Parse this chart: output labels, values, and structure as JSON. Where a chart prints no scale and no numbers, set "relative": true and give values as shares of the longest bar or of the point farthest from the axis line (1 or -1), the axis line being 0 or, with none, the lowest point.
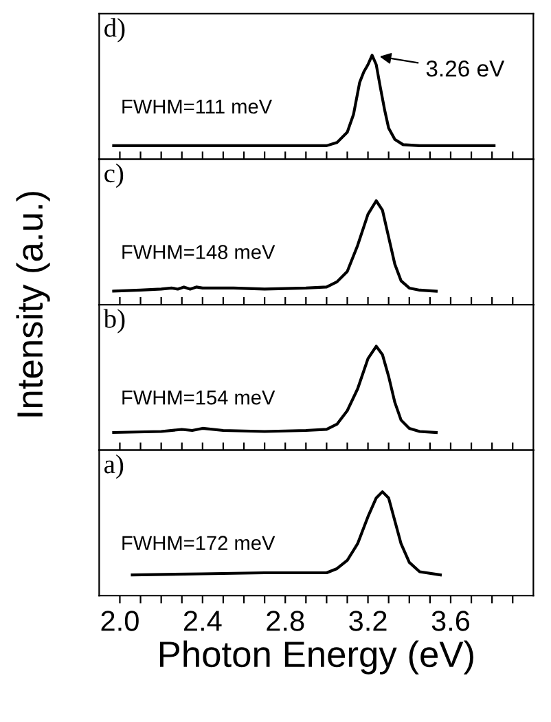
{
  "chart_data": [
    {
      "type": "line",
      "relative": true,
      "tick_labels": false,
      "ylabel": "Intensity (a.u.)",
      "xlim": [
        1.9,
        4.0
      ],
      "xticks": [
        {
          "value": 2.0,
          "label": null
        },
        {
          "value": 2.1,
          "label": null
        },
        {
          "value": 2.2,
          "label": null
        },
        {
          "value": 2.3,
          "label": null
        },
        {
          "value": 2.4,
          "label": null
        },
        {
          "value": 2.5,
          "label": null
        },
        {
          "value": 2.6,
          "label": null
        },
        {
          "value": 2.7,
          "label": null
        },
        {
          "value": 2.8,
          "label": null
        },
        {
          "value": 2.9,
          "label": null
        },
        {
          "value": 3.0,
          "label": null
        },
        {
          "value": 3.1,
          "label": null
        },
        {
          "value": 3.2,
          "label": null
        },
        {
          "value": 3.3,
          "label": null
        },
        {
          "value": 3.4,
          "label": null
        },
        {
          "value": 3.5,
          "label": null
        },
        {
          "value": 3.6,
          "label": null
        },
        {
          "value": 3.7,
          "label": null
        },
        {
          "value": 3.8,
          "label": null
        },
        {
          "value": 3.9,
          "label": null
        }
      ],
      "series": [
        {
          "color": "#000000",
          "x": [
            1.97,
            2.8,
            3.0,
            3.05,
            3.1,
            3.13,
            3.16,
            3.18,
            3.2,
            3.22,
            3.24,
            3.26,
            3.28,
            3.3,
            3.33,
            3.37,
            3.45,
            3.81
          ],
          "values": [
            0.13,
            0.13,
            0.13,
            0.16,
            0.26,
            0.43,
            0.74,
            0.84,
            0.91,
            1.0,
            0.91,
            0.69,
            0.48,
            0.3,
            0.19,
            0.14,
            0.13,
            0.13
          ]
        }
      ],
      "annotations": [
        "d)",
        "FWHM=111 meV",
        {
          "text": "3.26 eV",
          "x": 3.22,
          "y": 1.0
        }
      ]
    },
    {
      "type": "line",
      "relative": true,
      "tick_labels": false,
      "xlim": [
        1.9,
        4.0
      ],
      "xticks": [
        {
          "value": 2.0,
          "label": null
        },
        {
          "value": 2.1,
          "label": null
        },
        {
          "value": 2.2,
          "label": null
        },
        {
          "value": 2.3,
          "label": null
        },
        {
          "value": 2.4,
          "label": null
        },
        {
          "value": 2.5,
          "label": null
        },
        {
          "value": 2.6,
          "label": null
        },
        {
          "value": 2.7,
          "label": null
        },
        {
          "value": 2.8,
          "label": null
        },
        {
          "value": 2.9,
          "label": null
        },
        {
          "value": 3.0,
          "label": null
        },
        {
          "value": 3.1,
          "label": null
        },
        {
          "value": 3.2,
          "label": null
        },
        {
          "value": 3.3,
          "label": null
        },
        {
          "value": 3.4,
          "label": null
        },
        {
          "value": 3.5,
          "label": null
        },
        {
          "value": 3.6,
          "label": null
        },
        {
          "value": 3.7,
          "label": null
        },
        {
          "value": 3.8,
          "label": null
        },
        {
          "value": 3.9,
          "label": null
        }
      ],
      "series": [
        {
          "color": "#000000",
          "x": [
            1.97,
            2.1,
            2.2,
            2.25,
            2.28,
            2.31,
            2.34,
            2.37,
            2.4,
            2.45,
            2.55,
            2.7,
            2.9,
            3.0,
            3.05,
            3.1,
            3.15,
            3.2,
            3.24,
            3.27,
            3.3,
            3.33,
            3.36,
            3.4,
            3.45,
            3.53
          ],
          "values": [
            0.13,
            0.14,
            0.15,
            0.16,
            0.15,
            0.17,
            0.15,
            0.17,
            0.16,
            0.16,
            0.16,
            0.15,
            0.16,
            0.17,
            0.22,
            0.32,
            0.57,
            0.87,
            1.0,
            0.91,
            0.65,
            0.39,
            0.23,
            0.16,
            0.14,
            0.13
          ]
        }
      ],
      "annotations": [
        "c)",
        "FWHM=148 meV"
      ]
    },
    {
      "type": "line",
      "relative": true,
      "tick_labels": false,
      "xlim": [
        1.9,
        4.0
      ],
      "xticks": [
        {
          "value": 2.0,
          "label": null
        },
        {
          "value": 2.1,
          "label": null
        },
        {
          "value": 2.2,
          "label": null
        },
        {
          "value": 2.3,
          "label": null
        },
        {
          "value": 2.4,
          "label": null
        },
        {
          "value": 2.5,
          "label": null
        },
        {
          "value": 2.6,
          "label": null
        },
        {
          "value": 2.7,
          "label": null
        },
        {
          "value": 2.8,
          "label": null
        },
        {
          "value": 2.9,
          "label": null
        },
        {
          "value": 3.0,
          "label": null
        },
        {
          "value": 3.1,
          "label": null
        },
        {
          "value": 3.2,
          "label": null
        },
        {
          "value": 3.3,
          "label": null
        },
        {
          "value": 3.4,
          "label": null
        },
        {
          "value": 3.5,
          "label": null
        },
        {
          "value": 3.6,
          "label": null
        },
        {
          "value": 3.7,
          "label": null
        },
        {
          "value": 3.8,
          "label": null
        },
        {
          "value": 3.9,
          "label": null
        }
      ],
      "series": [
        {
          "color": "#000000",
          "x": [
            1.97,
            2.2,
            2.3,
            2.35,
            2.4,
            2.5,
            2.7,
            2.9,
            3.0,
            3.05,
            3.1,
            3.15,
            3.2,
            3.24,
            3.27,
            3.3,
            3.33,
            3.36,
            3.4,
            3.45,
            3.53
          ],
          "values": [
            0.17,
            0.18,
            0.2,
            0.19,
            0.21,
            0.19,
            0.18,
            0.19,
            0.2,
            0.25,
            0.38,
            0.59,
            0.88,
            1.0,
            0.92,
            0.71,
            0.46,
            0.29,
            0.21,
            0.18,
            0.17
          ]
        }
      ],
      "annotations": [
        "b)",
        "FWHM=154 meV"
      ]
    },
    {
      "type": "line",
      "relative": true,
      "tick_labels": "x",
      "xlabel": "Photon Energy (eV)",
      "xlim": [
        1.9,
        4.0
      ],
      "xticks": [
        {
          "value": 2.0,
          "label": "2.0"
        },
        {
          "value": 2.1,
          "label": null
        },
        {
          "value": 2.2,
          "label": null
        },
        {
          "value": 2.3,
          "label": null
        },
        {
          "value": 2.4,
          "label": "2.4"
        },
        {
          "value": 2.5,
          "label": null
        },
        {
          "value": 2.6,
          "label": null
        },
        {
          "value": 2.7,
          "label": null
        },
        {
          "value": 2.8,
          "label": "2.8"
        },
        {
          "value": 2.9,
          "label": null
        },
        {
          "value": 3.0,
          "label": null
        },
        {
          "value": 3.1,
          "label": null
        },
        {
          "value": 3.2,
          "label": "3.2"
        },
        {
          "value": 3.3,
          "label": null
        },
        {
          "value": 3.4,
          "label": null
        },
        {
          "value": 3.5,
          "label": null
        },
        {
          "value": 3.6,
          "label": "3.6"
        },
        {
          "value": 3.7,
          "label": null
        },
        {
          "value": 3.8,
          "label": null
        },
        {
          "value": 3.9,
          "label": null
        }
      ],
      "series": [
        {
          "color": "#000000",
          "x": [
            2.06,
            2.4,
            2.7,
            2.9,
            3.0,
            3.05,
            3.1,
            3.15,
            3.2,
            3.24,
            3.27,
            3.3,
            3.33,
            3.36,
            3.4,
            3.45,
            3.55
          ],
          "values": [
            0.2,
            0.21,
            0.22,
            0.22,
            0.22,
            0.26,
            0.34,
            0.5,
            0.76,
            0.94,
            1.0,
            0.94,
            0.72,
            0.5,
            0.32,
            0.23,
            0.2
          ]
        }
      ],
      "annotations": [
        "a)",
        "FWHM=172 meV"
      ]
    }
  ]
}
